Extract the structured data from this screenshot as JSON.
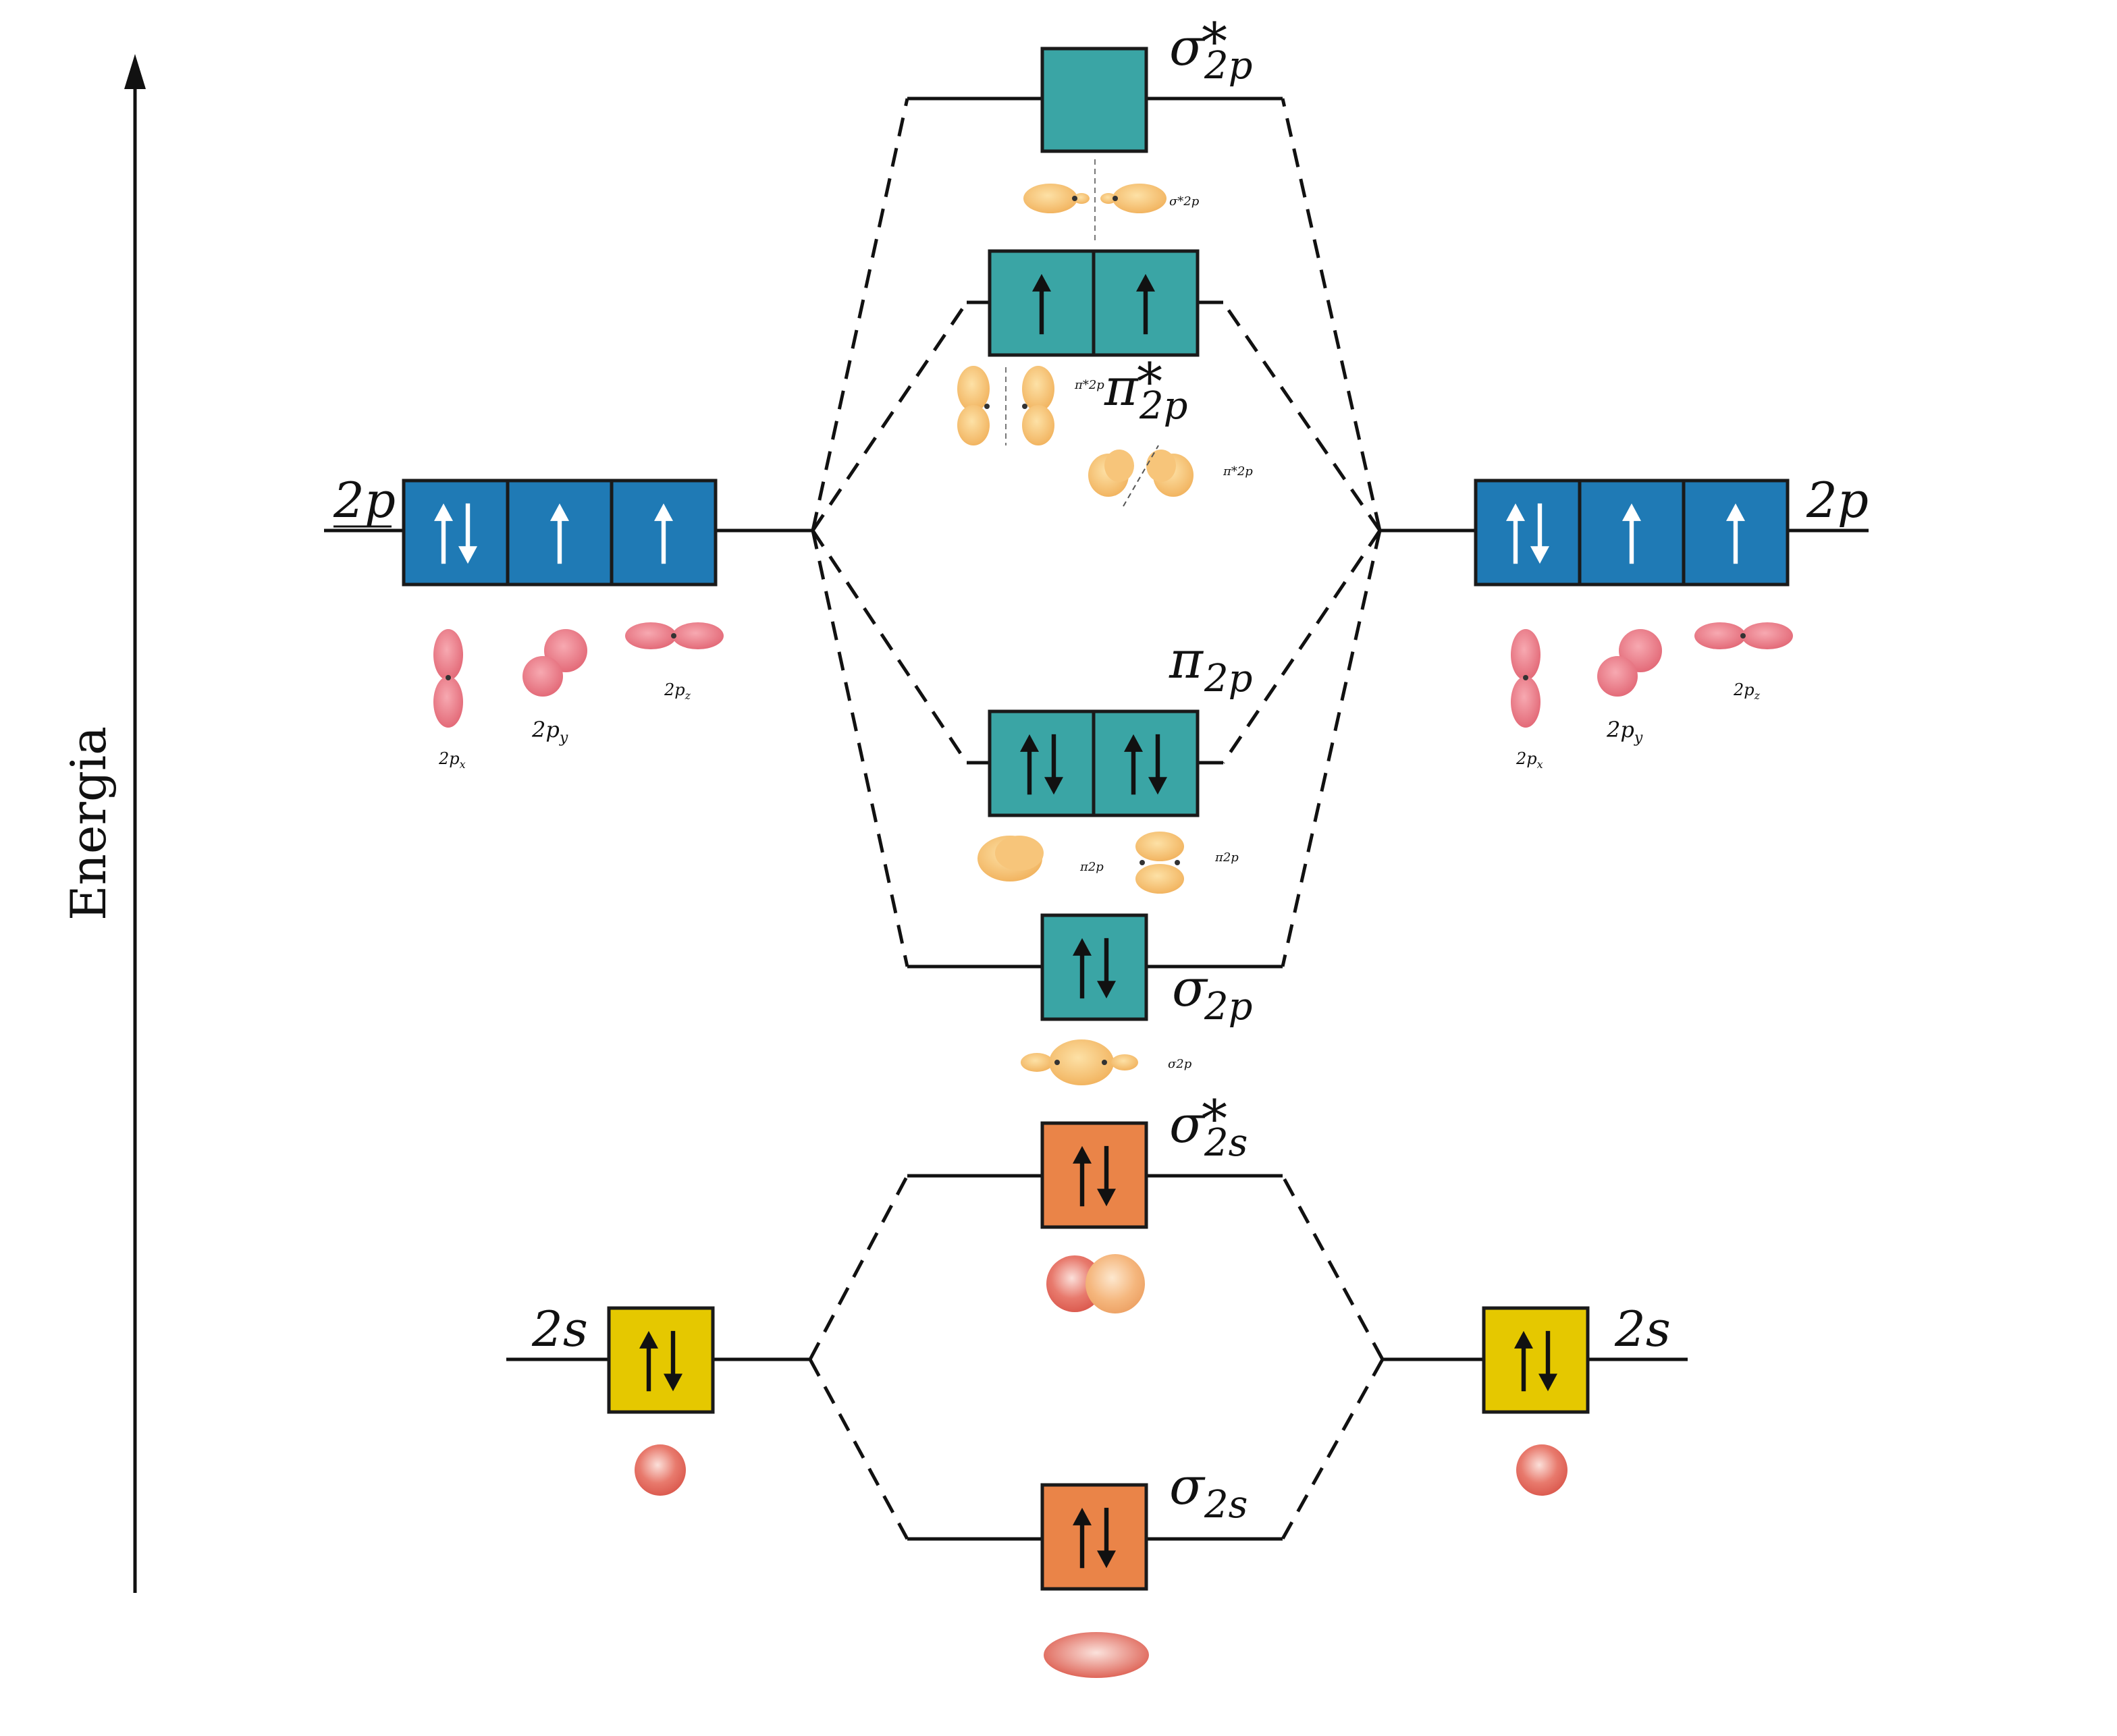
{
  "axis": {
    "label": "Energia"
  },
  "colors": {
    "p_atomic": "#1f7ab5",
    "mo_p": "#3aa5a5",
    "mo_s": "#ea8448",
    "atomic_s": "#e5c800",
    "lobe_atomic": "#e8727f",
    "lobe_mo": "#f6bd6a",
    "sphere": "#e0665a"
  },
  "left_atom": {
    "p_label_main": "2",
    "p_label_sub": "p",
    "s_label_main": "2",
    "s_label_sub": "s",
    "p_boxes": [
      "up-down",
      "up",
      "up"
    ],
    "s_box": "up-down",
    "orbitals": [
      {
        "main": "2p",
        "sub": "x"
      },
      {
        "main": "2p",
        "sub": "y"
      },
      {
        "main": "2p",
        "sub": "z"
      }
    ]
  },
  "right_atom": {
    "p_label_main": "2",
    "p_label_sub": "p",
    "s_label_main": "2",
    "s_label_sub": "s",
    "p_boxes": [
      "up-down",
      "up",
      "up"
    ],
    "s_box": "up-down",
    "orbitals": [
      {
        "main": "2p",
        "sub": "x"
      },
      {
        "main": "2p",
        "sub": "y"
      },
      {
        "main": "2p",
        "sub": "z"
      }
    ]
  },
  "molecular": {
    "sigma2p_star": {
      "symbol": "σ",
      "sub": "2p",
      "star": "*",
      "boxes": [
        "empty"
      ],
      "small": "σ*2p"
    },
    "pi2p_star": {
      "symbol": "π",
      "sub": "2p",
      "star": "*",
      "boxes": [
        "up",
        "up"
      ],
      "small": "π*2p"
    },
    "pi2p": {
      "symbol": "π",
      "sub": "2p",
      "boxes": [
        "up-down",
        "up-down"
      ],
      "small": "π2p"
    },
    "sigma2p": {
      "symbol": "σ",
      "sub": "2p",
      "boxes": [
        "up-down"
      ],
      "small": "σ2p"
    },
    "sigma2s_star": {
      "symbol": "σ",
      "sub": "2s",
      "star": "*",
      "boxes": [
        "up-down"
      ]
    },
    "sigma2s": {
      "symbol": "σ",
      "sub": "2s",
      "boxes": [
        "up-down"
      ]
    }
  }
}
